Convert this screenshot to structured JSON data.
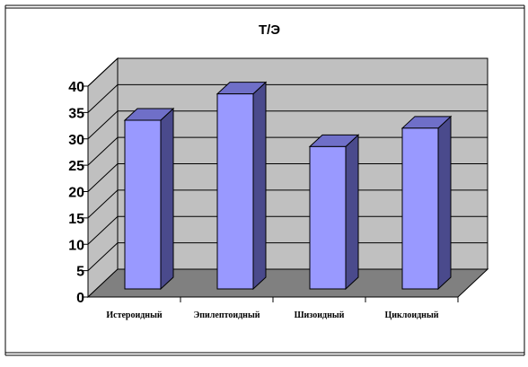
{
  "chart_data": {
    "type": "bar",
    "title": "Т/Э",
    "categories": [
      "Истероидный",
      "Эпилептоидный",
      "Шизоидный",
      "Циклоидный"
    ],
    "values": [
      32,
      37,
      27,
      30.5
    ],
    "ylim": [
      0,
      40
    ],
    "yticks": [
      0,
      5,
      10,
      15,
      20,
      25,
      30,
      35,
      40
    ],
    "grid": true,
    "style": "3d-column",
    "xlabel": "",
    "ylabel": ""
  },
  "colors": {
    "bar_front": "#9999FF",
    "bar_side": "#4A4A8C",
    "bar_top": "#6F6FC8",
    "wall": "#C0C0C0",
    "floor": "#808080",
    "gridline": "#000000"
  }
}
